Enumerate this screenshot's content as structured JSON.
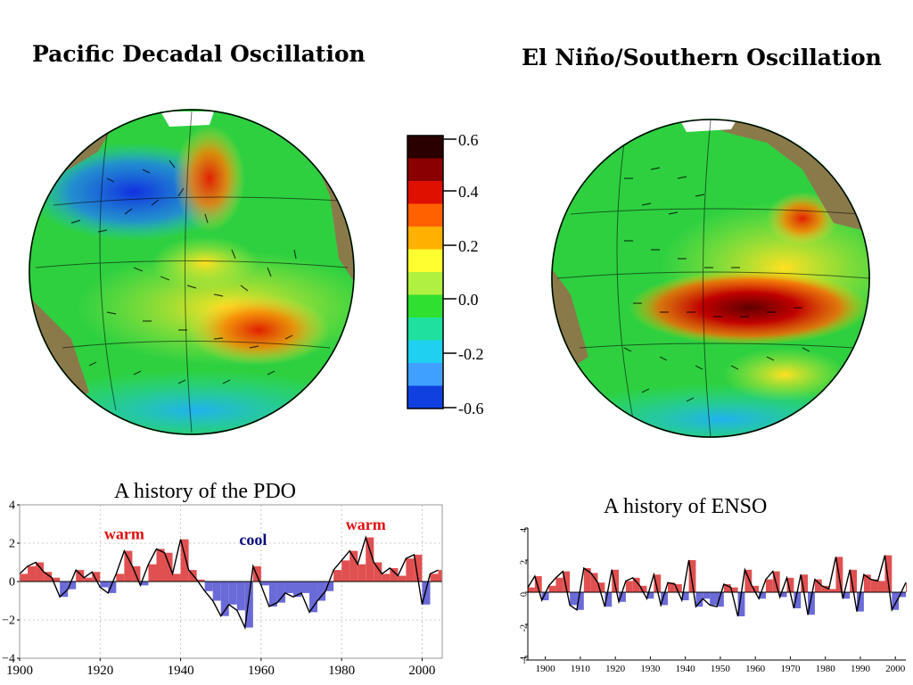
{
  "slide": {
    "pdo_title": "Pacific Decadal Oscillation",
    "enso_title": "El Niño/Southern Oscillation",
    "pdo_history_title": "A history of the PDO",
    "enso_history_title": "A history of ENSO"
  },
  "colors": {
    "warm": "#e05050",
    "cool": "#6a6ad8",
    "land": "#8a7a4a",
    "ocean_background": "#2ecc40",
    "warm_label": "#e01010",
    "cool_label": "#0a0a80"
  },
  "colorbar": {
    "labels": [
      "0.6",
      "0.4",
      "0.2",
      "0.0",
      "-0.2",
      "-0.6"
    ],
    "colors": [
      "#2a0000",
      "#8a0000",
      "#e01000",
      "#ff6000",
      "#ffb000",
      "#ffff30",
      "#b0f040",
      "#30e030",
      "#20e0a0",
      "#20d0f0",
      "#40a0ff",
      "#1040e0"
    ]
  },
  "chart_data": [
    {
      "type": "area",
      "title": "A history of the PDO",
      "xlim": [
        1900,
        2005
      ],
      "ylim": [
        -4,
        4
      ],
      "xticks": [
        "1900",
        "1920",
        "1940",
        "1960",
        "1980",
        "2000"
      ],
      "yticks": [
        "4",
        "2",
        "0",
        "−2",
        "−4"
      ],
      "grid": true,
      "annotations": [
        {
          "text": "warm",
          "x": 1926,
          "y": 2.2,
          "color": "warm"
        },
        {
          "text": "cool",
          "x": 1958,
          "y": 1.9,
          "color": "cool"
        },
        {
          "text": "warm",
          "x": 1986,
          "y": 2.7,
          "color": "warm"
        }
      ],
      "series": [
        {
          "x": [
            1900,
            1902,
            1904,
            1906,
            1908,
            1910,
            1912,
            1914,
            1916,
            1918,
            1920,
            1922,
            1924,
            1926,
            1928,
            1930,
            1932,
            1934,
            1936,
            1938,
            1940,
            1942,
            1944,
            1946,
            1948,
            1950,
            1952,
            1954,
            1956,
            1958,
            1960,
            1962,
            1964,
            1966,
            1968,
            1970,
            1972,
            1974,
            1976,
            1978,
            1980,
            1982,
            1984,
            1986,
            1988,
            1990,
            1992,
            1994,
            1996,
            1998,
            2000,
            2002,
            2004
          ],
          "values": [
            0.4,
            0.8,
            1.0,
            0.5,
            0.2,
            -0.8,
            -0.4,
            0.6,
            0.2,
            0.5,
            -0.3,
            -0.6,
            0.4,
            1.6,
            0.8,
            -0.2,
            0.9,
            1.7,
            1.5,
            0.4,
            2.2,
            0.6,
            0.1,
            -0.5,
            -1.0,
            -1.8,
            -1.2,
            -1.5,
            -2.4,
            0.8,
            -0.2,
            -1.3,
            -1.1,
            -0.6,
            -0.8,
            -0.6,
            -1.6,
            -1.0,
            -0.5,
            0.6,
            1.1,
            1.6,
            0.9,
            2.3,
            1.0,
            0.4,
            0.7,
            0.3,
            1.2,
            1.4,
            -1.2,
            0.4,
            0.6
          ]
        }
      ]
    },
    {
      "type": "area",
      "title": "A history of ENSO",
      "xlim": [
        1895,
        2003
      ],
      "ylim": [
        -4,
        4
      ],
      "xticks": [
        "1900",
        "1910",
        "1920",
        "1930",
        "1940",
        "1950",
        "1960",
        "1970",
        "1980",
        "1990",
        "2000"
      ],
      "yticks": [
        "4",
        "2",
        "0",
        "-2",
        "-4"
      ],
      "grid": false,
      "series": [
        {
          "x": [
            1895,
            1897,
            1899,
            1901,
            1903,
            1905,
            1907,
            1909,
            1911,
            1913,
            1915,
            1917,
            1919,
            1921,
            1923,
            1925,
            1927,
            1929,
            1931,
            1933,
            1935,
            1937,
            1939,
            1941,
            1943,
            1945,
            1947,
            1949,
            1951,
            1953,
            1955,
            1957,
            1959,
            1961,
            1963,
            1965,
            1967,
            1969,
            1971,
            1973,
            1975,
            1977,
            1979,
            1981,
            1983,
            1985,
            1987,
            1989,
            1991,
            1993,
            1995,
            1997,
            1999,
            2001,
            2003
          ],
          "values": [
            0.3,
            1.0,
            -0.5,
            0.4,
            0.9,
            1.3,
            -0.8,
            -1.1,
            1.5,
            1.2,
            0.6,
            -0.9,
            1.4,
            -0.6,
            0.7,
            0.9,
            0.4,
            -0.4,
            1.1,
            -0.8,
            0.6,
            0.5,
            -0.5,
            2.0,
            -0.9,
            -0.4,
            -0.8,
            -0.9,
            0.5,
            0.3,
            -1.5,
            1.4,
            0.4,
            -0.4,
            0.8,
            1.3,
            -0.3,
            0.9,
            -1.0,
            1.1,
            -1.4,
            0.8,
            0.4,
            0.2,
            2.2,
            -0.4,
            1.4,
            -1.2,
            1.1,
            0.8,
            0.7,
            2.3,
            -1.1,
            -0.3,
            0.6
          ]
        }
      ]
    }
  ]
}
